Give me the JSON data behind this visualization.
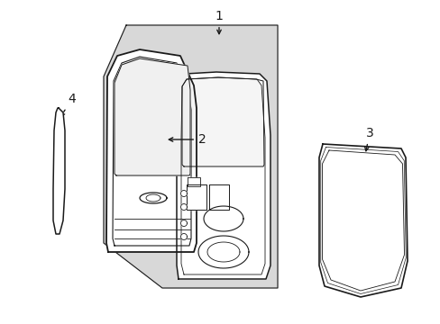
{
  "bg_color": "#ffffff",
  "lc": "#1a1a1a",
  "gray_fill": "#d8d8d8",
  "white": "#ffffff",
  "figsize": [
    4.89,
    3.6
  ],
  "dpi": 100
}
